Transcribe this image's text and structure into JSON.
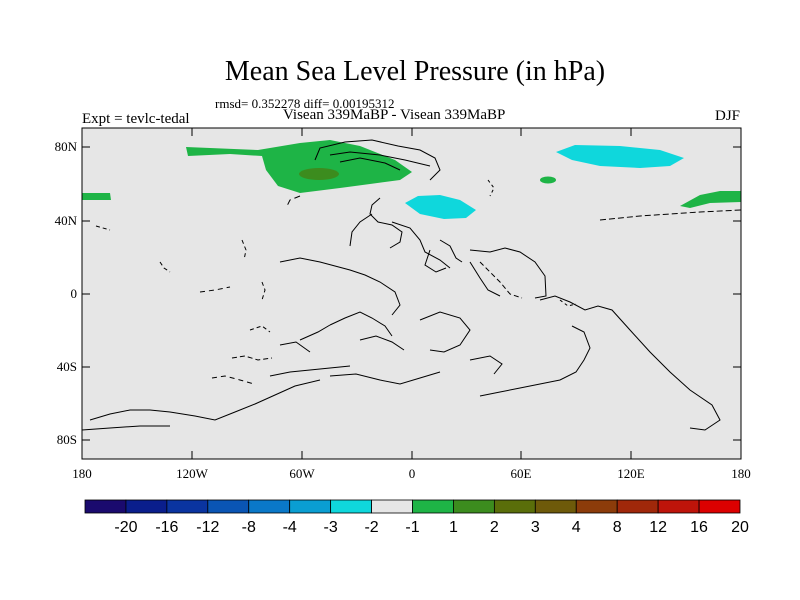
{
  "header": {
    "title": "Mean Sea Level Pressure (in hPa)",
    "stats": "rmsd= 0.352278 diff= 0.00195312",
    "experiment": "Expt = tevlc-tedal",
    "comparison": "Visean 339MaBP - Visean 339MaBP",
    "season": "DJF"
  },
  "axes": {
    "lat_labels": [
      "80N",
      "40N",
      "0",
      "40S",
      "80S"
    ],
    "lon_labels": [
      "180",
      "120W",
      "60W",
      "0",
      "60E",
      "120E",
      "180"
    ]
  },
  "colorbar": {
    "colors": [
      "#1a0a6e",
      "#0a1e8c",
      "#0a34a0",
      "#0a55b4",
      "#0a78c8",
      "#0a9ed2",
      "#0fd7dc",
      "#e6e6e6",
      "#1eb446",
      "#3c8c1e",
      "#5a6e0a",
      "#6e5a0a",
      "#8c3c0a",
      "#a0280a",
      "#be140a",
      "#dc0000"
    ],
    "labels": [
      "-20",
      "-16",
      "-12",
      "-8",
      "-4",
      "-3",
      "-2",
      "-1",
      "1",
      "2",
      "3",
      "4",
      "8",
      "12",
      "16",
      "20"
    ]
  },
  "legend": {
    "positive_color": "#1eb446",
    "strong_positive_color": "#3c8c1e",
    "negative_color": "#0fd7dc",
    "background_color": "#e6e6e6"
  }
}
